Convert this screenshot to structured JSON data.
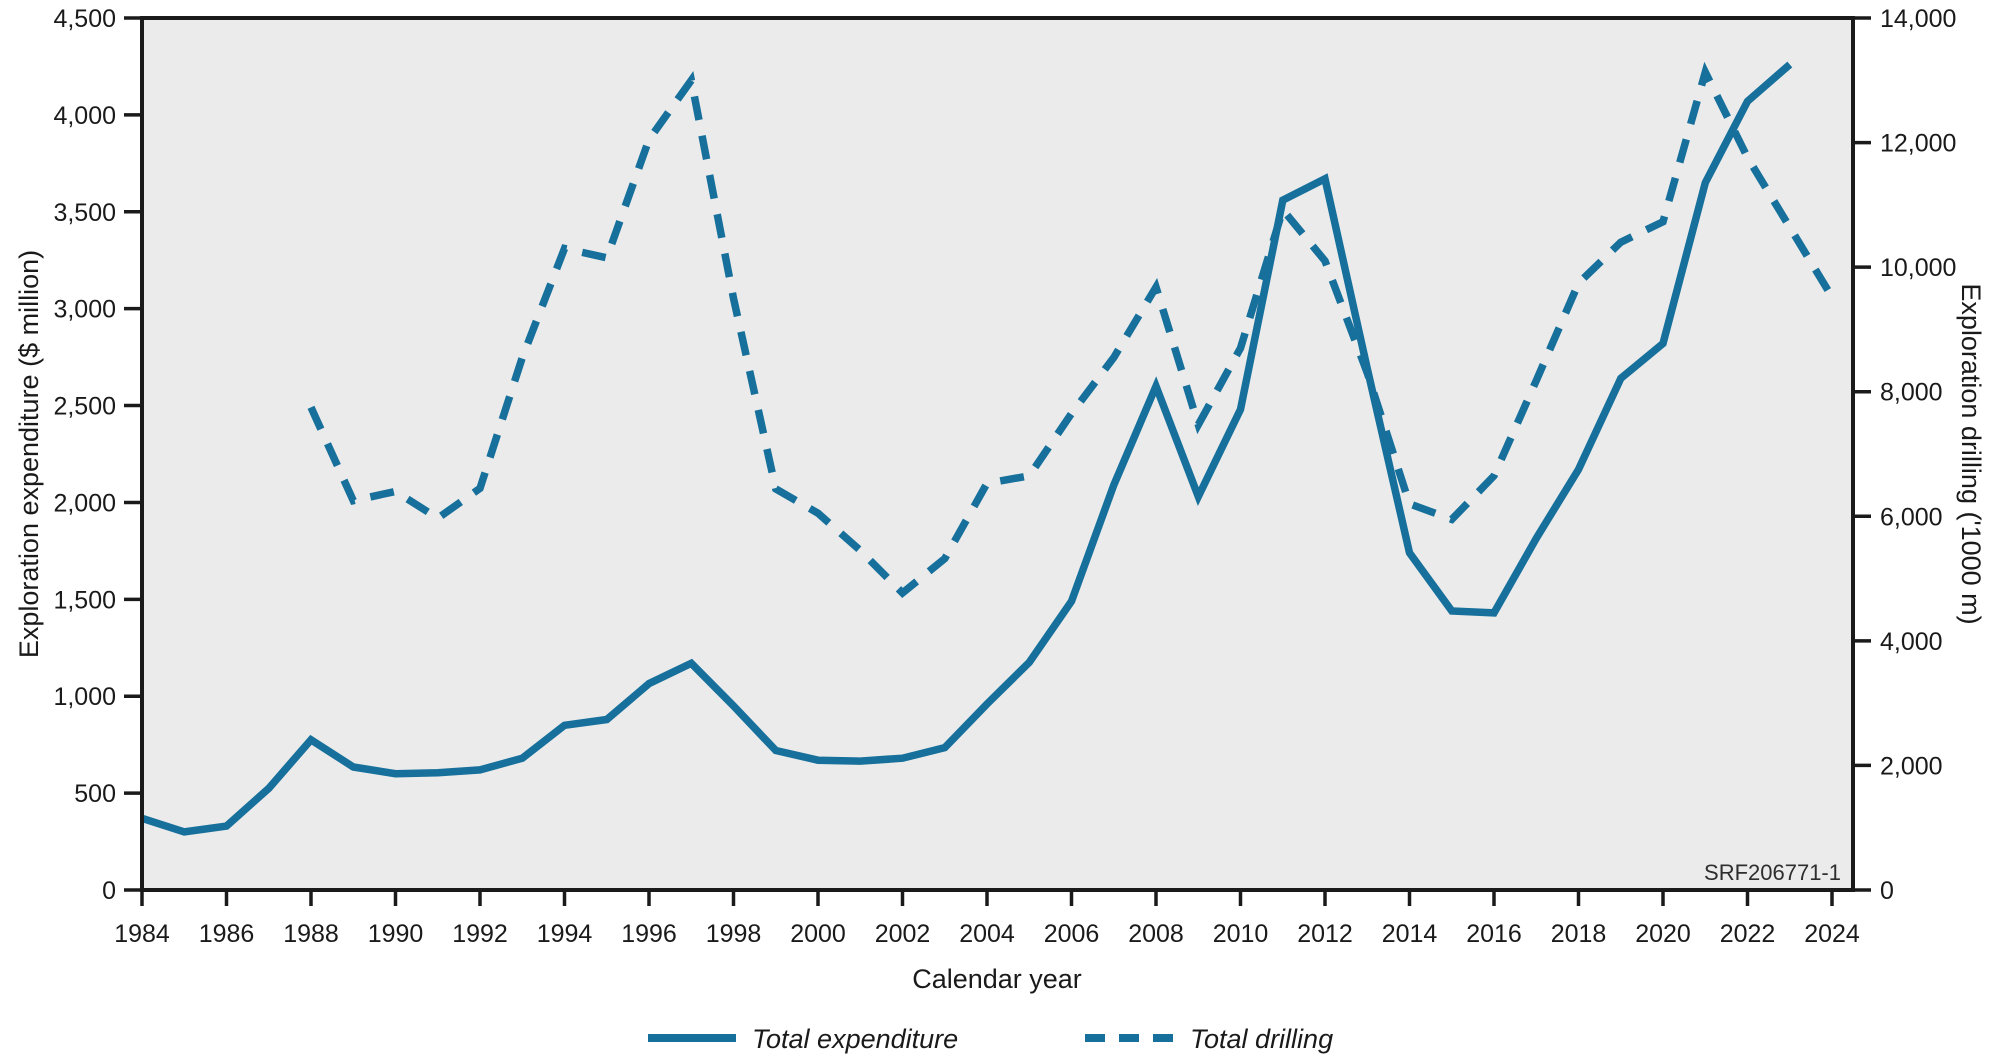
{
  "chart_data": {
    "type": "line",
    "title": "",
    "xlabel": "Calendar year",
    "ylabel_left": "Exploration expenditure ($ million)",
    "ylabel_right": "Exploration drilling ('1000 m)",
    "watermark": "SRF206771-1",
    "grid": "off",
    "legend_position": "bottom-center",
    "x_axis": {
      "min": 1984,
      "max": 2024,
      "tick_step": 2,
      "tick_labels": [
        "1984",
        "1986",
        "1988",
        "1990",
        "1992",
        "1994",
        "1996",
        "1998",
        "2000",
        "2002",
        "2004",
        "2006",
        "2008",
        "2010",
        "2012",
        "2014",
        "2016",
        "2018",
        "2020",
        "2022",
        "2024"
      ]
    },
    "left_axis": {
      "min": 0,
      "max": 4500,
      "step": 500,
      "tick_labels": [
        "0",
        "500",
        "1,000",
        "1,500",
        "2,000",
        "2,500",
        "3,000",
        "3,500",
        "4,000",
        "4,500"
      ]
    },
    "right_axis": {
      "min": 0,
      "max": 14000,
      "step": 2000,
      "tick_labels": [
        "0",
        "2,000",
        "4,000",
        "6,000",
        "8,000",
        "10,000",
        "12,000",
        "14,000"
      ]
    },
    "legend": [
      {
        "label": "Total expenditure",
        "style": "solid"
      },
      {
        "label": "Total drilling",
        "style": "dashed"
      }
    ],
    "series": [
      {
        "name": "Total expenditure",
        "axis": "left",
        "style": "solid",
        "years": [
          1984,
          1985,
          1986,
          1987,
          1988,
          1989,
          1990,
          1991,
          1992,
          1993,
          1994,
          1995,
          1996,
          1997,
          1998,
          1999,
          2000,
          2001,
          2002,
          2003,
          2004,
          2005,
          2006,
          2007,
          2008,
          2009,
          2010,
          2011,
          2012,
          2013,
          2014,
          2015,
          2016,
          2017,
          2018,
          2019,
          2020,
          2021,
          2022,
          2023
        ],
        "values": [
          370,
          300,
          330,
          525,
          775,
          635,
          600,
          605,
          620,
          680,
          850,
          880,
          1065,
          1170,
          950,
          720,
          670,
          665,
          680,
          735,
          960,
          1175,
          1490,
          2090,
          2600,
          2030,
          2480,
          3560,
          3670,
          2690,
          1740,
          1440,
          1430,
          1815,
          2170,
          2640,
          2820,
          3650,
          4070,
          4260
        ]
      },
      {
        "name": "Total drilling",
        "axis": "right",
        "style": "dashed",
        "years": [
          1988,
          1989,
          1990,
          1991,
          1992,
          1993,
          1994,
          1995,
          1996,
          1997,
          1998,
          1999,
          2000,
          2001,
          2002,
          2003,
          2004,
          2005,
          2006,
          2007,
          2008,
          2009,
          2010,
          2011,
          2012,
          2013,
          2014,
          2015,
          2016,
          2017,
          2018,
          2019,
          2020,
          2021,
          2022,
          2023,
          2024
        ],
        "values": [
          7750,
          6250,
          6400,
          5970,
          6450,
          8550,
          10300,
          10150,
          12050,
          13000,
          9500,
          6440,
          6050,
          5450,
          4770,
          5320,
          6530,
          6650,
          7650,
          8550,
          9680,
          7470,
          8700,
          10920,
          10100,
          8300,
          6200,
          5950,
          6650,
          8180,
          9740,
          10400,
          10730,
          13130,
          11760,
          10640,
          9520
        ]
      }
    ],
    "colors": {
      "line": "#16709B",
      "plot_bg": "#EBEBEB",
      "axis": "#1A1A1A",
      "text": "#1A1A1A"
    }
  }
}
